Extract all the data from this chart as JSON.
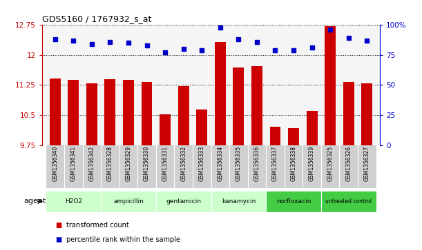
{
  "title": "GDS5160 / 1767932_s_at",
  "samples": [
    "GSM1356340",
    "GSM1356341",
    "GSM1356342",
    "GSM1356328",
    "GSM1356329",
    "GSM1356330",
    "GSM1356331",
    "GSM1356332",
    "GSM1356333",
    "GSM1356334",
    "GSM1356335",
    "GSM1356336",
    "GSM1356337",
    "GSM1356338",
    "GSM1356339",
    "GSM1356325",
    "GSM1356326",
    "GSM1356327"
  ],
  "red_values": [
    11.42,
    11.37,
    11.3,
    11.4,
    11.38,
    11.33,
    10.52,
    11.22,
    10.63,
    12.32,
    11.68,
    11.73,
    10.2,
    10.17,
    10.6,
    12.72,
    11.32,
    11.3
  ],
  "blue_values": [
    88,
    87,
    84,
    86,
    85,
    83,
    77,
    80,
    79,
    98,
    88,
    86,
    79,
    79,
    81,
    96,
    89,
    87
  ],
  "groups": [
    {
      "label": "H2O2",
      "start": 0,
      "end": 3,
      "color": "#ccffcc"
    },
    {
      "label": "ampicillin",
      "start": 3,
      "end": 6,
      "color": "#ccffcc"
    },
    {
      "label": "gentamicin",
      "start": 6,
      "end": 9,
      "color": "#ccffcc"
    },
    {
      "label": "kanamycin",
      "start": 9,
      "end": 12,
      "color": "#ccffcc"
    },
    {
      "label": "norfloxacin",
      "start": 12,
      "end": 15,
      "color": "#44cc44"
    },
    {
      "label": "untreated control",
      "start": 15,
      "end": 18,
      "color": "#44cc44"
    }
  ],
  "ylim_left": [
    9.75,
    12.75
  ],
  "ylim_right": [
    0,
    100
  ],
  "yticks_left": [
    9.75,
    10.5,
    11.25,
    12.0,
    12.75
  ],
  "yticks_right": [
    0,
    25,
    50,
    75,
    100
  ],
  "ytick_labels_left": [
    "9.75",
    "10.5",
    "11.25",
    "12",
    "12.75"
  ],
  "ytick_labels_right": [
    "0",
    "25",
    "50",
    "75",
    "100%"
  ],
  "bar_color": "#cc0000",
  "dot_color": "#0000cc",
  "legend_red": "transformed count",
  "legend_blue": "percentile rank within the sample",
  "agent_label": "agent",
  "background_color": "#ffffff",
  "bar_width": 0.6,
  "plot_bg": "#f5f5f5",
  "tick_label_bg": "#d0d0d0"
}
